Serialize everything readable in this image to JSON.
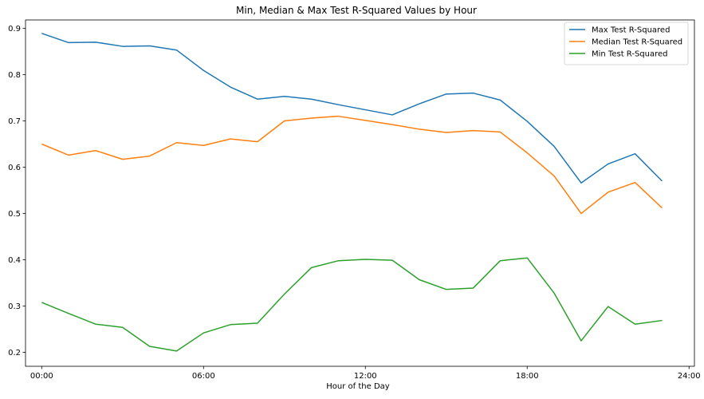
{
  "chart_data": {
    "type": "line",
    "title": "Min, Median & Max Test R-Squared Values by Hour",
    "xlabel": "Hour of the Day",
    "ylabel": "",
    "x": [
      "00:00",
      "01:00",
      "02:00",
      "03:00",
      "04:00",
      "05:00",
      "06:00",
      "07:00",
      "08:00",
      "09:00",
      "10:00",
      "11:00",
      "12:00",
      "13:00",
      "14:00",
      "15:00",
      "16:00",
      "17:00",
      "18:00",
      "19:00",
      "20:00",
      "21:00",
      "22:00",
      "23:00"
    ],
    "xlim": [
      -0.6,
      24.2
    ],
    "ylim": [
      0.17,
      0.918
    ],
    "xticks": [
      {
        "value": 0,
        "label": "00:00"
      },
      {
        "value": 6,
        "label": "06:00"
      },
      {
        "value": 12,
        "label": "12:00"
      },
      {
        "value": 18,
        "label": "18:00"
      },
      {
        "value": 24,
        "label": "24:00"
      }
    ],
    "yticks": [
      {
        "value": 0.2,
        "label": "0.2"
      },
      {
        "value": 0.3,
        "label": "0.3"
      },
      {
        "value": 0.4,
        "label": "0.4"
      },
      {
        "value": 0.5,
        "label": "0.5"
      },
      {
        "value": 0.6,
        "label": "0.6"
      },
      {
        "value": 0.7,
        "label": "0.7"
      },
      {
        "value": 0.8,
        "label": "0.8"
      },
      {
        "value": 0.9,
        "label": "0.9"
      }
    ],
    "grid": false,
    "legend_position": "top-right",
    "series": [
      {
        "name": "Max Test R-Squared",
        "color": "#1f77b4",
        "values": [
          0.889,
          0.869,
          0.87,
          0.861,
          0.862,
          0.853,
          0.809,
          0.773,
          0.747,
          0.753,
          0.747,
          0.735,
          0.724,
          0.713,
          0.737,
          0.758,
          0.76,
          0.745,
          0.699,
          0.645,
          0.566,
          0.607,
          0.629,
          0.57
        ]
      },
      {
        "name": "Median Test R-Squared",
        "color": "#ff7f0e",
        "values": [
          0.65,
          0.626,
          0.636,
          0.617,
          0.624,
          0.653,
          0.647,
          0.661,
          0.655,
          0.7,
          0.706,
          0.71,
          0.701,
          0.692,
          0.682,
          0.675,
          0.679,
          0.676,
          0.631,
          0.581,
          0.5,
          0.546,
          0.567,
          0.512
        ]
      },
      {
        "name": "Min Test R-Squared",
        "color": "#2ca02c",
        "values": [
          0.308,
          0.284,
          0.261,
          0.254,
          0.213,
          0.203,
          0.242,
          0.26,
          0.263,
          0.326,
          0.383,
          0.398,
          0.401,
          0.399,
          0.357,
          0.336,
          0.339,
          0.398,
          0.404,
          0.328,
          0.225,
          0.299,
          0.261,
          0.269
        ]
      }
    ]
  }
}
